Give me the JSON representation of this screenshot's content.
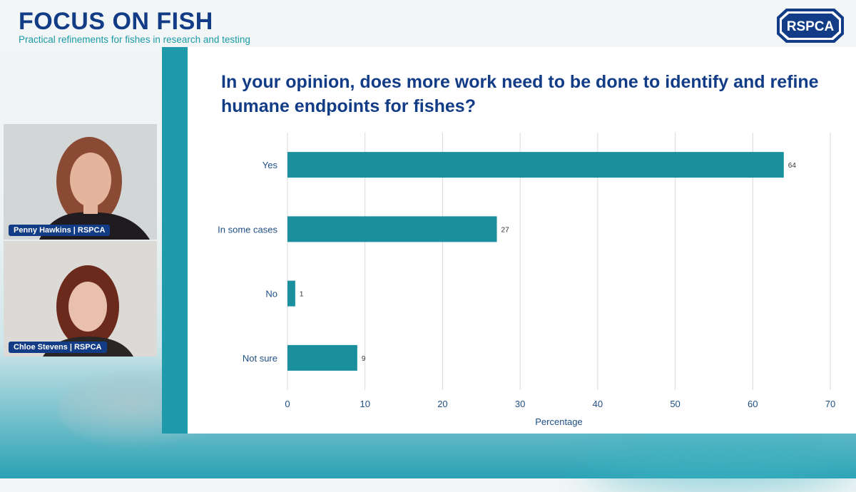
{
  "header": {
    "title": "FOCUS ON FISH",
    "subtitle": "Practical refinements for fishes in research and testing",
    "logo_text": "RSPCA"
  },
  "slide": {
    "question": "In your opinion, does more work need to be done to identify and refine humane endpoints for fishes?"
  },
  "participants": [
    {
      "name": "Penny Hawkins | RSPCA"
    },
    {
      "name": "Chloe Stevens | RSPCA"
    }
  ],
  "colors": {
    "brand_navy": "#123c86",
    "brand_teal": "#1c9aa8",
    "bar": "#1a8f9e"
  },
  "chart_data": {
    "type": "bar",
    "orientation": "horizontal",
    "categories": [
      "Yes",
      "In some cases",
      "No",
      "Not sure"
    ],
    "values": [
      64,
      27,
      1,
      9
    ],
    "data_labels": [
      "64",
      "27",
      "1",
      "9"
    ],
    "xlabel": "Percentage",
    "ylabel": "",
    "xlim": [
      0,
      70
    ],
    "xticks": [
      "0",
      "10",
      "20",
      "30",
      "40",
      "50",
      "60",
      "70"
    ],
    "grid": true,
    "legend": "none"
  }
}
